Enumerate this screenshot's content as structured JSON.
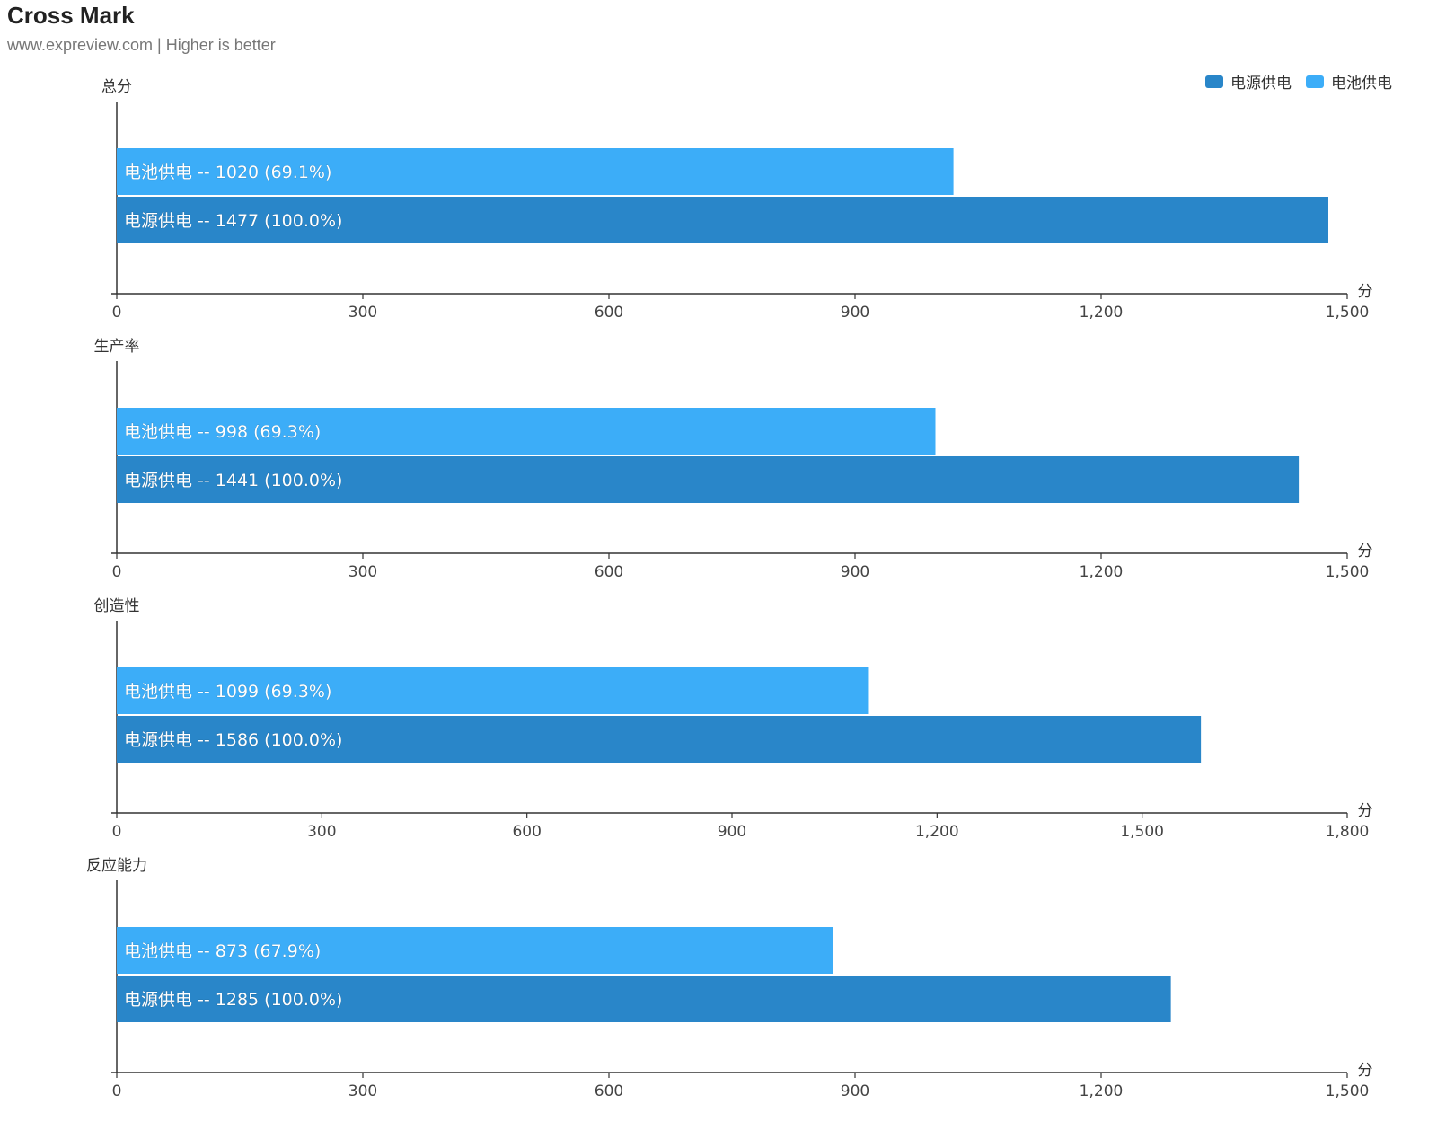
{
  "title": "Cross Mark",
  "subtitle": "www.expreview.com | Higher is better",
  "legend": [
    {
      "name": "电源供电",
      "color": "#2986c9"
    },
    {
      "name": "电池供电",
      "color": "#3cadf8"
    }
  ],
  "chart_data": [
    {
      "type": "bar",
      "title": "总分",
      "unit": "分",
      "xlim": [
        0,
        1500
      ],
      "ticks": [
        "0",
        "300",
        "600",
        "900",
        "1,200",
        "1,500"
      ],
      "tick_values": [
        0,
        300,
        600,
        900,
        1200,
        1500
      ],
      "bars": [
        {
          "series": "电池供电",
          "value": 1020,
          "label": "电池供电 -- 1020 (69.1%)",
          "color": "#3cadf8"
        },
        {
          "series": "电源供电",
          "value": 1477,
          "label": "电源供电 -- 1477 (100.0%)",
          "color": "#2986c9"
        }
      ]
    },
    {
      "type": "bar",
      "title": "生产率",
      "unit": "分",
      "xlim": [
        0,
        1500
      ],
      "ticks": [
        "0",
        "300",
        "600",
        "900",
        "1,200",
        "1,500"
      ],
      "tick_values": [
        0,
        300,
        600,
        900,
        1200,
        1500
      ],
      "bars": [
        {
          "series": "电池供电",
          "value": 998,
          "label": "电池供电 -- 998 (69.3%)",
          "color": "#3cadf8"
        },
        {
          "series": "电源供电",
          "value": 1441,
          "label": "电源供电 -- 1441 (100.0%)",
          "color": "#2986c9"
        }
      ]
    },
    {
      "type": "bar",
      "title": "创造性",
      "unit": "分",
      "xlim": [
        0,
        1800
      ],
      "ticks": [
        "0",
        "300",
        "600",
        "900",
        "1,200",
        "1,500",
        "1,800"
      ],
      "tick_values": [
        0,
        300,
        600,
        900,
        1200,
        1500,
        1800
      ],
      "bars": [
        {
          "series": "电池供电",
          "value": 1099,
          "label": "电池供电 -- 1099 (69.3%)",
          "color": "#3cadf8"
        },
        {
          "series": "电源供电",
          "value": 1586,
          "label": "电源供电 -- 1586 (100.0%)",
          "color": "#2986c9"
        }
      ]
    },
    {
      "type": "bar",
      "title": "反应能力",
      "unit": "分",
      "xlim": [
        0,
        1500
      ],
      "ticks": [
        "0",
        "300",
        "600",
        "900",
        "1,200",
        "1,500"
      ],
      "tick_values": [
        0,
        300,
        600,
        900,
        1200,
        1500
      ],
      "bars": [
        {
          "series": "电池供电",
          "value": 873,
          "label": "电池供电 -- 873 (67.9%)",
          "color": "#3cadf8"
        },
        {
          "series": "电源供电",
          "value": 1285,
          "label": "电源供电 -- 1285 (100.0%)",
          "color": "#2986c9"
        }
      ]
    }
  ]
}
